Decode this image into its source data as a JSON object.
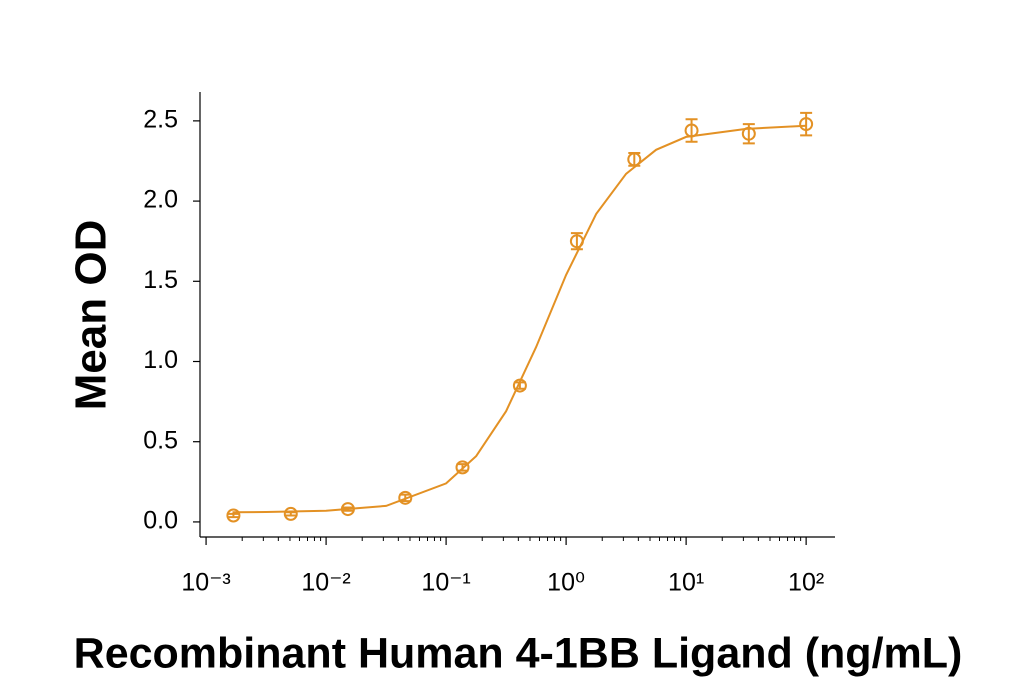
{
  "chart_data": {
    "type": "scatter",
    "x_label": "Recombinant Human 4-1BB Ligand (ng/mL)",
    "y_label": "Mean OD",
    "x_scale": "log",
    "color": "#e39124",
    "x": [
      0.00169,
      0.00508,
      0.0152,
      0.0457,
      0.137,
      0.412,
      1.23,
      3.7,
      11.1,
      33.3,
      100
    ],
    "values": [
      0.04,
      0.05,
      0.08,
      0.15,
      0.34,
      0.85,
      1.75,
      2.26,
      2.44,
      2.42,
      2.48
    ],
    "errors": [
      0.01,
      0.01,
      0.01,
      0.02,
      0.02,
      0.02,
      0.05,
      0.04,
      0.07,
      0.06,
      0.07
    ],
    "curve": {
      "x": [
        0.00166,
        0.00316,
        0.01,
        0.0316,
        0.1,
        0.178,
        0.316,
        0.562,
        1,
        1.78,
        3.16,
        5.62,
        10,
        31.6,
        100
      ],
      "values": [
        0.06,
        0.062,
        0.07,
        0.1,
        0.24,
        0.41,
        0.69,
        1.09,
        1.54,
        1.92,
        2.17,
        2.32,
        2.4,
        2.45,
        2.47
      ]
    },
    "xlim": [
      0.00089,
      174
    ],
    "ylim": [
      -0.094,
      2.68
    ],
    "xticks": [
      {
        "value": 0.001,
        "label": "10⁻³"
      },
      {
        "value": 0.01,
        "label": "10⁻²"
      },
      {
        "value": 0.1,
        "label": "10⁻¹"
      },
      {
        "value": 1,
        "label": "10⁰"
      },
      {
        "value": 10,
        "label": "10¹"
      },
      {
        "value": 100,
        "label": "10²"
      }
    ],
    "yticks": [
      {
        "value": 0,
        "label": "0.0"
      },
      0.5,
      {
        "value": 1,
        "label": "1.0"
      },
      1.5,
      {
        "value": 2,
        "label": "2.0"
      },
      2.5
    ],
    "grid": false
  }
}
